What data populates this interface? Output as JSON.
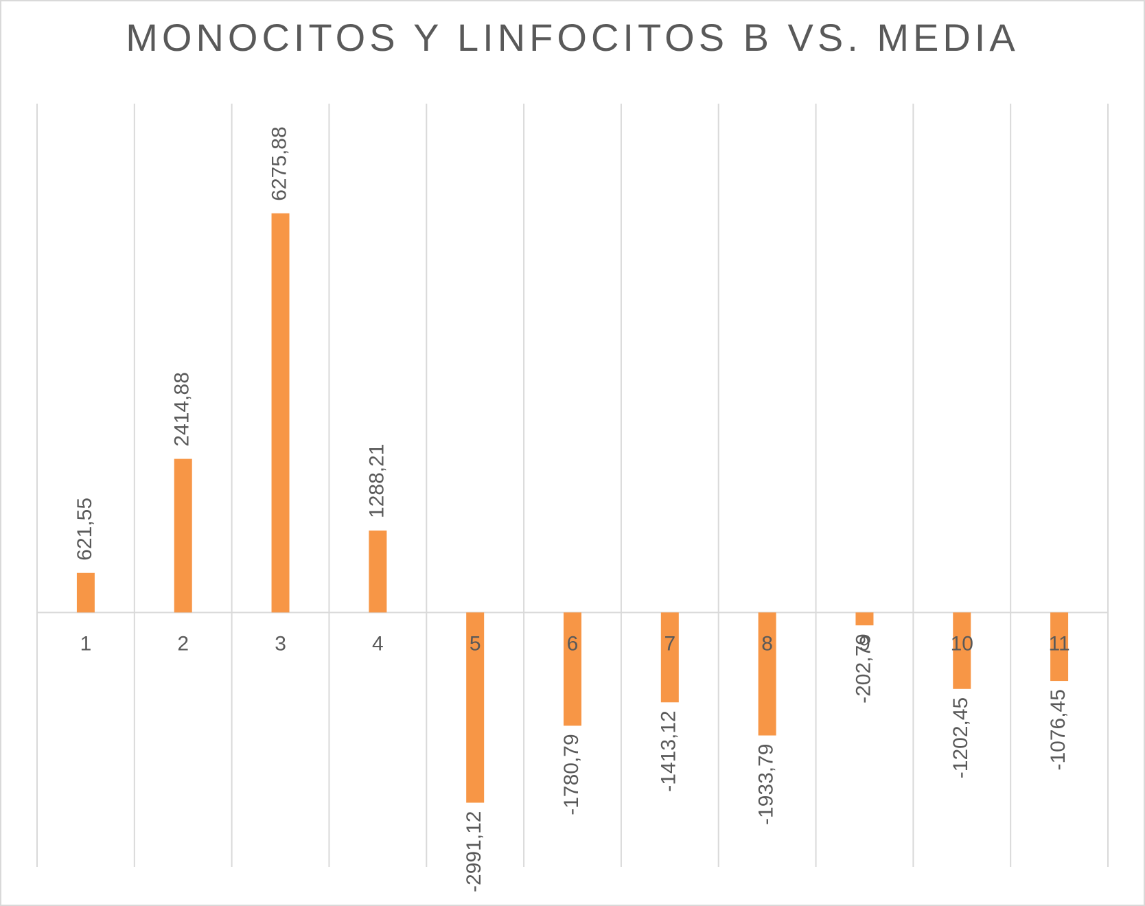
{
  "chart_data": {
    "type": "bar",
    "title": "MONOCITOS Y LINFOCITOS B VS. MEDIA",
    "categories": [
      "1",
      "2",
      "3",
      "4",
      "5",
      "6",
      "7",
      "8",
      "9",
      "10",
      "11"
    ],
    "values": [
      621.55,
      2414.88,
      6275.88,
      1288.21,
      -2991.12,
      -1780.79,
      -1413.12,
      -1933.79,
      -202.79,
      -1202.45,
      -1076.45
    ],
    "data_labels": [
      "621,55",
      "2414,88",
      "6275,88",
      "1288,21",
      "-2991,12",
      "-1780,79",
      "-1413,12",
      "-1933,79",
      "-202,79",
      "-1202,45",
      "-1076,45"
    ],
    "xlabel": "",
    "ylabel": "",
    "ylim": [
      -4000,
      8000
    ],
    "grid": "vertical",
    "legend": "none",
    "colors": {
      "bar": "#F79646",
      "grid": "#D9D9D9",
      "text": "#595959"
    }
  }
}
